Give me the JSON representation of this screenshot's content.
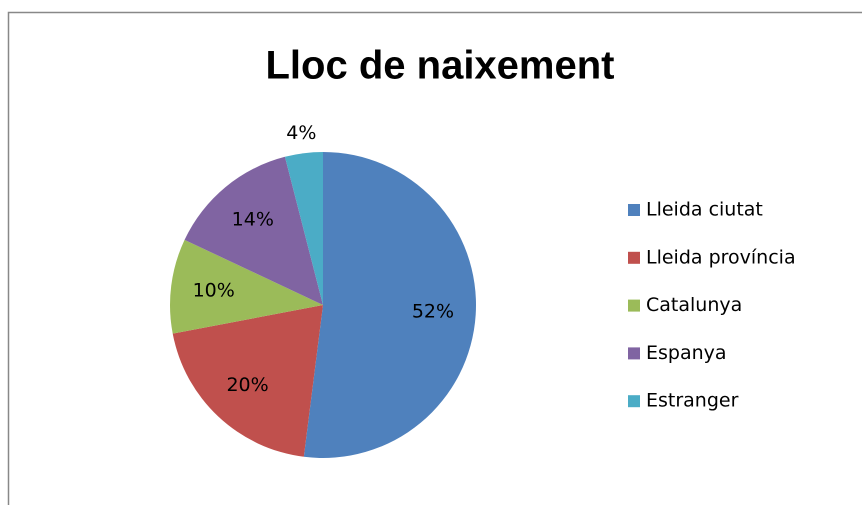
{
  "chart_data": {
    "type": "pie",
    "title": "Lloc de naixement",
    "categories": [
      "Lleida ciutat",
      "Lleida província",
      "Catalunya",
      "Espanya",
      "Estranger"
    ],
    "values": [
      52,
      20,
      10,
      14,
      4
    ],
    "value_labels": [
      "52%",
      "20%",
      "10%",
      "14%",
      "4%"
    ],
    "colors": [
      "#4f81bd",
      "#c0504d",
      "#9bbb59",
      "#8064a2",
      "#4bacc6"
    ],
    "legend": "right"
  }
}
